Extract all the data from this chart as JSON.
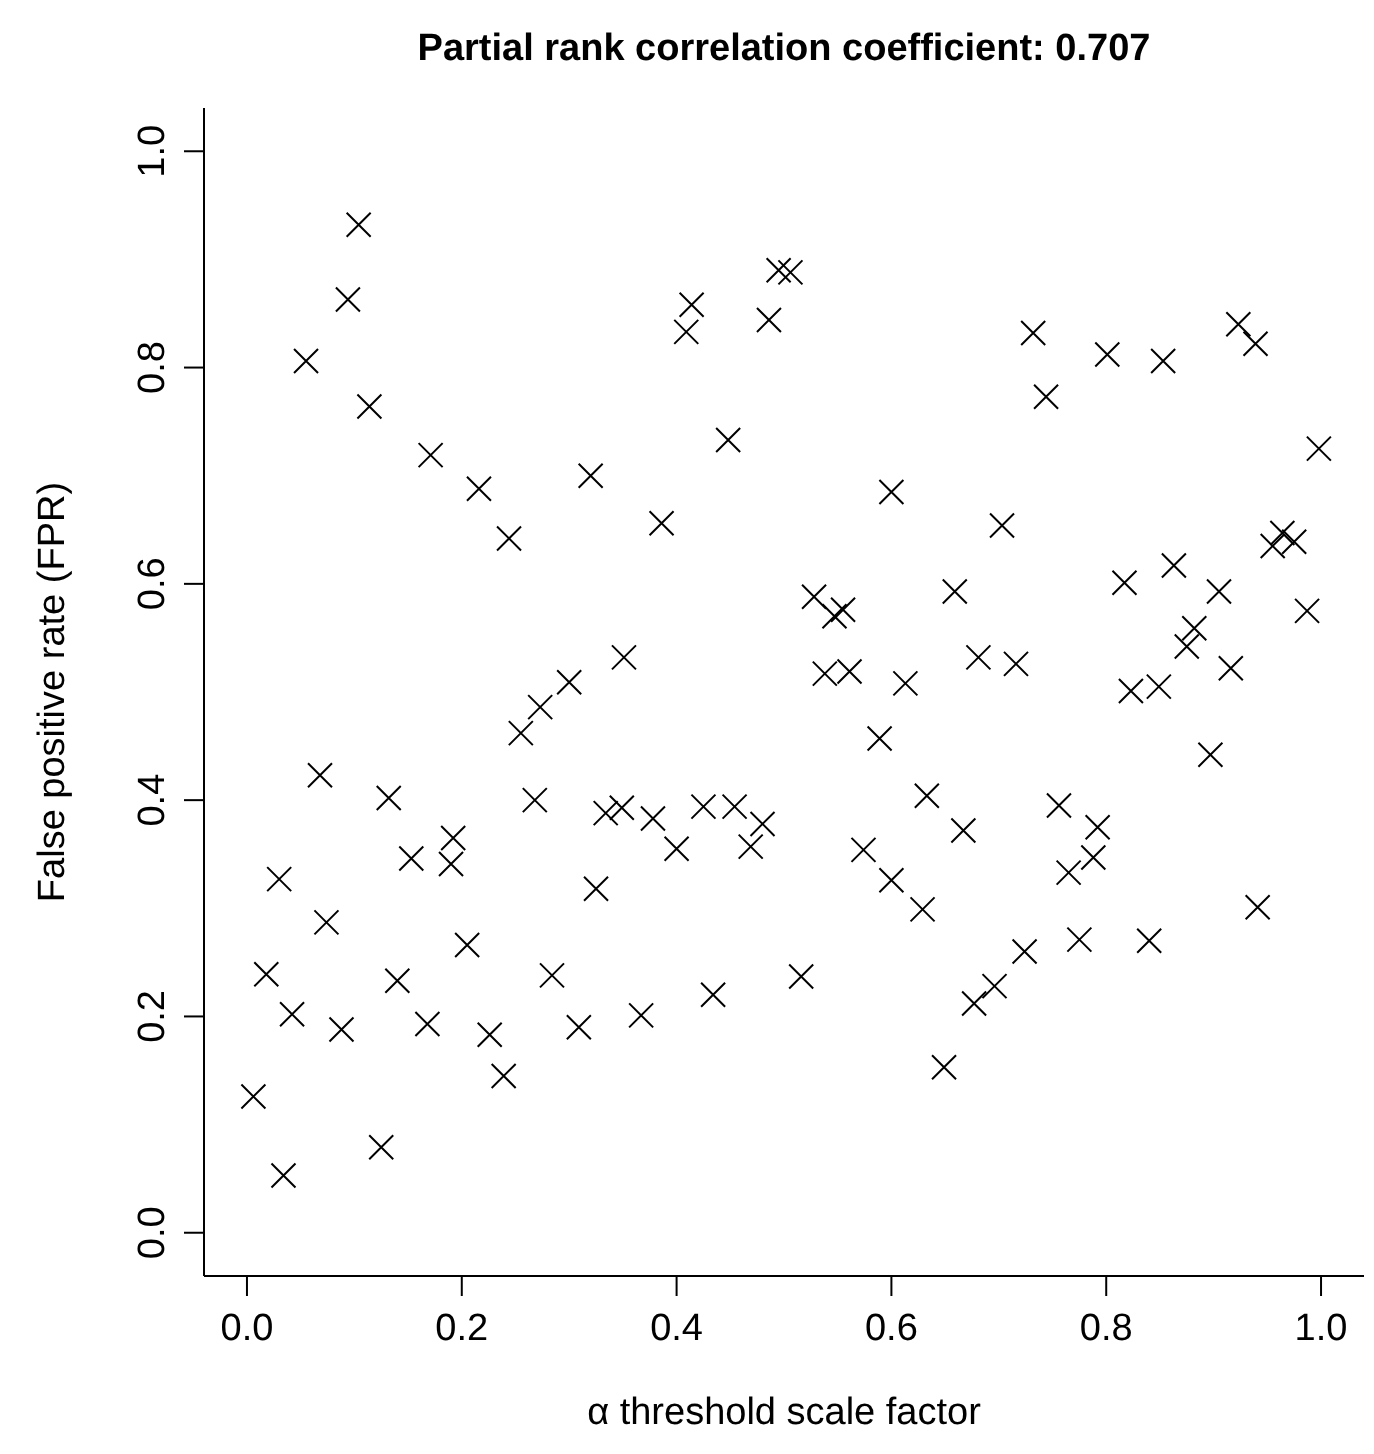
{
  "chart_data": {
    "type": "scatter",
    "title": "Partial rank correlation coefficient: 0.707",
    "xlabel": "α threshold scale factor",
    "ylabel": "False positive rate (FPR)",
    "xlim": [
      -0.04,
      1.04
    ],
    "ylim": [
      -0.04,
      1.04
    ],
    "xticks": [
      {
        "value": 0,
        "label": "0.0"
      },
      {
        "value": 0.2,
        "label": "0.2"
      },
      {
        "value": 0.4,
        "label": "0.4"
      },
      {
        "value": 0.6,
        "label": "0.6"
      },
      {
        "value": 0.8,
        "label": "0.8"
      },
      {
        "value": 1,
        "label": "1.0"
      }
    ],
    "yticks": [
      {
        "value": 0,
        "label": "0.0"
      },
      {
        "value": 0.2,
        "label": "0.2"
      },
      {
        "value": 0.4,
        "label": "0.4"
      },
      {
        "value": 0.6,
        "label": "0.6"
      },
      {
        "value": 0.8,
        "label": "0.8"
      },
      {
        "value": 1,
        "label": "1.0"
      }
    ],
    "marker": "cross",
    "grid": false,
    "series": [
      {
        "color": "#000000",
        "x": [
          0.104,
          0.094,
          0.055,
          0.114,
          0.171,
          0.216,
          0.244,
          0.32,
          0.386,
          0.448,
          0.414,
          0.409,
          0.486,
          0.495,
          0.506,
          0.351,
          0.3,
          0.273,
          0.732,
          0.801,
          0.853,
          0.923,
          0.939,
          0.744,
          0.998,
          0.6,
          0.703,
          0.964,
          0.955,
          0.975,
          0.863,
          0.817,
          0.905,
          0.659,
          0.528,
          0.555,
          0.547,
          0.987,
          0.882,
          0.875,
          0.681,
          0.716,
          0.916,
          0.538,
          0.561,
          0.613,
          0.823,
          0.849,
          0.589,
          0.897,
          0.48,
          0.469,
          0.633,
          0.667,
          0.574,
          0.6,
          0.629,
          0.756,
          0.792,
          0.788,
          0.765,
          0.941,
          0.516,
          0.724,
          0.775,
          0.84,
          0.696,
          0.677,
          0.649,
          0.068,
          0.132,
          0.153,
          0.192,
          0.19,
          0.03,
          0.074,
          0.205,
          0.018,
          0.042,
          0.088,
          0.14,
          0.168,
          0.226,
          0.239,
          0.006,
          0.034,
          0.125,
          0.255,
          0.268,
          0.284,
          0.325,
          0.334,
          0.349,
          0.378,
          0.4,
          0.367,
          0.309,
          0.425,
          0.454,
          0.434
        ],
        "values": [
          0.932,
          0.863,
          0.806,
          0.764,
          0.719,
          0.688,
          0.642,
          0.7,
          0.656,
          0.733,
          0.858,
          0.833,
          0.844,
          0.89,
          0.888,
          0.532,
          0.509,
          0.486,
          0.832,
          0.812,
          0.806,
          0.84,
          0.822,
          0.773,
          0.725,
          0.685,
          0.654,
          0.647,
          0.635,
          0.639,
          0.617,
          0.601,
          0.593,
          0.593,
          0.588,
          0.576,
          0.57,
          0.575,
          0.559,
          0.542,
          0.532,
          0.526,
          0.522,
          0.517,
          0.519,
          0.508,
          0.501,
          0.505,
          0.457,
          0.442,
          0.378,
          0.357,
          0.404,
          0.372,
          0.354,
          0.326,
          0.299,
          0.395,
          0.375,
          0.347,
          0.333,
          0.301,
          0.237,
          0.26,
          0.271,
          0.27,
          0.228,
          0.212,
          0.153,
          0.423,
          0.402,
          0.346,
          0.365,
          0.341,
          0.327,
          0.287,
          0.266,
          0.239,
          0.202,
          0.188,
          0.233,
          0.193,
          0.183,
          0.145,
          0.126,
          0.053,
          0.079,
          0.462,
          0.4,
          0.238,
          0.318,
          0.388,
          0.393,
          0.383,
          0.355,
          0.201,
          0.19,
          0.394,
          0.394,
          0.22
        ]
      }
    ]
  }
}
